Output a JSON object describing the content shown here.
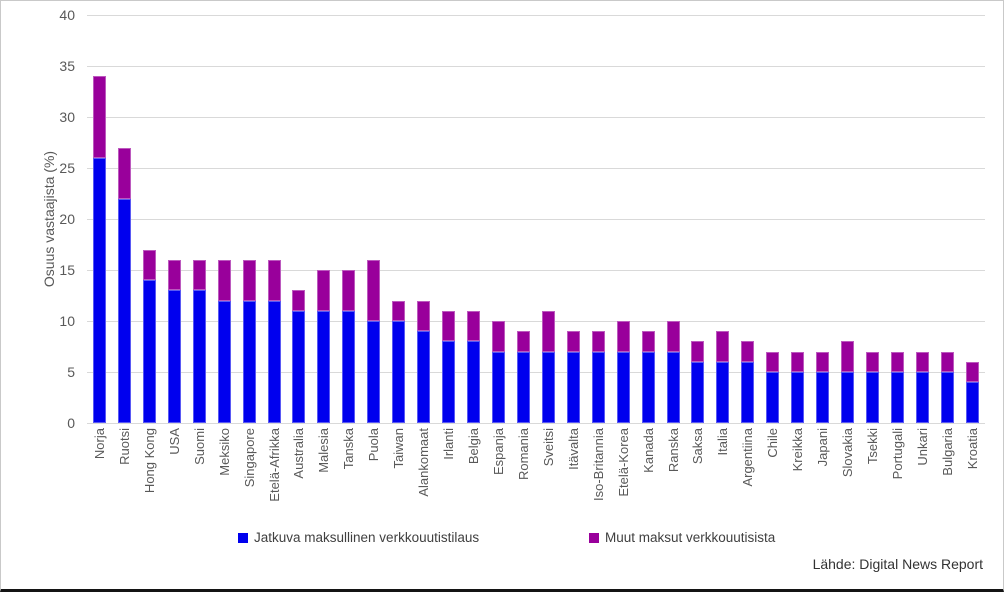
{
  "y_axis_title": "Osuus vastaajista (%)",
  "source_text": "Lähde: Digital News Report",
  "legend": [
    {
      "label": "Jatkuva maksullinen verkkouutistilaus",
      "color": "#0000ee"
    },
    {
      "label": "Muut maksut verkkouutisista",
      "color": "#99009b"
    }
  ],
  "colors": {
    "gridline": "#d9d9d9",
    "axis_text": "#595959"
  },
  "chart_data": {
    "type": "bar",
    "stacked": true,
    "title": "",
    "xlabel": "",
    "ylabel": "Osuus vastaajista (%)",
    "ylim": [
      0,
      40
    ],
    "ytick_step": 5,
    "grid": true,
    "legend_position": "bottom",
    "categories": [
      "Norja",
      "Ruotsi",
      "Hong Kong",
      "USA",
      "Suomi",
      "Meksiko",
      "Singapore",
      "Etelä-Afrikka",
      "Australia",
      "Malesia",
      "Tanska",
      "Puola",
      "Taiwan",
      "Alankomaat",
      "Irlanti",
      "Belgia",
      "Espanja",
      "Romania",
      "Sveitsi",
      "Itävalta",
      "Iso-Britannia",
      "Etelä-Korea",
      "Kanada",
      "Ranska",
      "Saksa",
      "Italia",
      "Argentiina",
      "Chile",
      "Kreikka",
      "Japani",
      "Slovakia",
      "Tsekki",
      "Portugali",
      "Unkari",
      "Bulgaria",
      "Kroatia"
    ],
    "series": [
      {
        "name": "Jatkuva maksullinen verkkouutistilaus",
        "color": "#0000ee",
        "values": [
          26,
          22,
          14,
          13,
          13,
          12,
          12,
          12,
          11,
          11,
          11,
          10,
          10,
          9,
          8,
          8,
          7,
          7,
          7,
          7,
          7,
          7,
          7,
          7,
          6,
          6,
          6,
          5,
          5,
          5,
          5,
          5,
          5,
          5,
          5,
          4
        ]
      },
      {
        "name": "Muut maksut verkkouutisista",
        "color": "#99009b",
        "values": [
          8,
          5,
          3,
          3,
          3,
          4,
          4,
          4,
          2,
          4,
          4,
          6,
          2,
          3,
          3,
          3,
          3,
          2,
          4,
          2,
          2,
          3,
          2,
          3,
          2,
          3,
          2,
          2,
          2,
          2,
          3,
          2,
          2,
          2,
          2,
          2
        ]
      }
    ],
    "totals": [
      34,
      27,
      17,
      16,
      16,
      16,
      16,
      16,
      13,
      15,
      15,
      16,
      12,
      12,
      11,
      11,
      10,
      9,
      11,
      9,
      9,
      10,
      9,
      10,
      8,
      9,
      8,
      7,
      7,
      7,
      8,
      7,
      7,
      7,
      7,
      6
    ]
  }
}
